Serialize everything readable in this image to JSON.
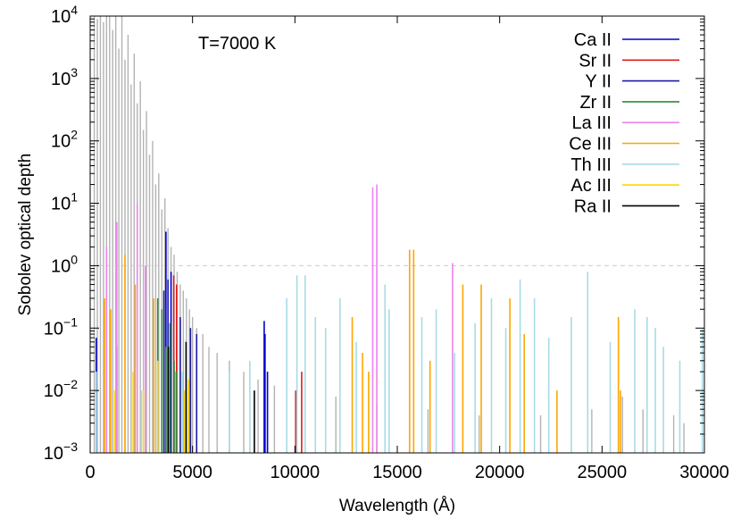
{
  "chart_data": {
    "type": "bar",
    "subtype": "vertical line spectrum (stick plot)",
    "xlabel": "Wavelength (Å)",
    "ylabel": "Sobolev optical depth",
    "annotation": "T=7000 K",
    "xlim": [
      0,
      30000
    ],
    "ylim": [
      0.001,
      10000
    ],
    "yscale": "log",
    "grid": false,
    "legend_position": "top-right",
    "x_ticks": [
      "0",
      "5000",
      "10000",
      "15000",
      "20000",
      "25000",
      "30000"
    ],
    "x_tick_values": [
      0,
      5000,
      10000,
      15000,
      20000,
      25000,
      30000
    ],
    "y_ticks": [
      {
        "value": 0.001,
        "base": "10",
        "exp": "−3"
      },
      {
        "value": 0.01,
        "base": "10",
        "exp": "−2"
      },
      {
        "value": 0.1,
        "base": "10",
        "exp": "−1"
      },
      {
        "value": 1,
        "base": "10",
        "exp": "0"
      },
      {
        "value": 10,
        "base": "10",
        "exp": "1"
      },
      {
        "value": 100,
        "base": "10",
        "exp": "2"
      },
      {
        "value": 1000,
        "base": "10",
        "exp": "3"
      },
      {
        "value": 10000,
        "base": "10",
        "exp": "4"
      }
    ],
    "reference_line": {
      "y": 1,
      "style": "dashed",
      "color": "#cccccc"
    },
    "background_lines": {
      "color": "#b3b3b3",
      "lines": [
        [
          200,
          10000
        ],
        [
          350,
          9000
        ],
        [
          500,
          10000
        ],
        [
          650,
          8000
        ],
        [
          800,
          10000
        ],
        [
          950,
          10000
        ],
        [
          1100,
          6000
        ],
        [
          1250,
          10000
        ],
        [
          1400,
          3000
        ],
        [
          1550,
          10000
        ],
        [
          1700,
          2000
        ],
        [
          1850,
          5000
        ],
        [
          2000,
          800
        ],
        [
          2150,
          2500
        ],
        [
          2300,
          400
        ],
        [
          2450,
          900
        ],
        [
          2600,
          150
        ],
        [
          2750,
          300
        ],
        [
          2900,
          60
        ],
        [
          3050,
          100
        ],
        [
          3200,
          20
        ],
        [
          3350,
          30
        ],
        [
          3500,
          8
        ],
        [
          3650,
          12
        ],
        [
          3800,
          4
        ],
        [
          3950,
          2
        ],
        [
          4100,
          1.5
        ],
        [
          4250,
          0.8
        ],
        [
          4400,
          0.5
        ],
        [
          4550,
          0.4
        ],
        [
          4700,
          0.3
        ],
        [
          4850,
          0.2
        ],
        [
          5000,
          0.15
        ],
        [
          5200,
          0.1
        ],
        [
          5500,
          0.08
        ],
        [
          5800,
          0.05
        ],
        [
          6200,
          0.04
        ],
        [
          6800,
          0.03
        ],
        [
          7500,
          0.02
        ],
        [
          8200,
          0.015
        ],
        [
          9000,
          0.012
        ],
        [
          10500,
          0.01
        ],
        [
          12000,
          0.008
        ],
        [
          14000,
          0.006
        ],
        [
          16500,
          0.005
        ],
        [
          19000,
          0.004
        ],
        [
          22000,
          0.004
        ],
        [
          24500,
          0.005
        ],
        [
          26000,
          0.008
        ],
        [
          27000,
          0.005
        ],
        [
          28500,
          0.004
        ],
        [
          29000,
          0.003
        ]
      ]
    },
    "series": [
      {
        "name": "Ca II",
        "color": "#0000cc",
        "lines": [
          [
            300,
            0.07
          ],
          [
            1300,
            0.05
          ],
          [
            3700,
            3.5
          ],
          [
            3950,
            0.8
          ],
          [
            8500,
            0.13
          ],
          [
            8660,
            0.02
          ],
          [
            8540,
            0.08
          ]
        ]
      },
      {
        "name": "Sr II",
        "color": "#e31a1c",
        "lines": [
          [
            4080,
            0.7
          ],
          [
            4220,
            0.5
          ],
          [
            10330,
            0.02
          ],
          [
            10040,
            0.01
          ]
        ]
      },
      {
        "name": "Y II",
        "color": "#1a1aa0",
        "lines": [
          [
            3600,
            0.4
          ],
          [
            3800,
            0.6
          ],
          [
            4400,
            0.15
          ],
          [
            4900,
            0.1
          ],
          [
            5200,
            0.08
          ]
        ]
      },
      {
        "name": "Zr II",
        "color": "#2e8b3a",
        "lines": [
          [
            3300,
            0.3
          ],
          [
            3500,
            0.2
          ],
          [
            3700,
            0.05
          ],
          [
            3900,
            0.12
          ],
          [
            4100,
            0.03
          ],
          [
            4200,
            0.02
          ]
        ]
      },
      {
        "name": "La III",
        "color": "#ee82ee",
        "lines": [
          [
            800,
            2
          ],
          [
            1300,
            5
          ],
          [
            2300,
            10
          ],
          [
            2700,
            1
          ],
          [
            13800,
            18
          ],
          [
            14000,
            20
          ],
          [
            17700,
            1.1
          ]
        ]
      },
      {
        "name": "Ce III",
        "color": "#ffa500",
        "lines": [
          [
            700,
            0.3
          ],
          [
            1000,
            0.2
          ],
          [
            1700,
            1.5
          ],
          [
            2200,
            0.5
          ],
          [
            3100,
            0.3
          ],
          [
            12800,
            0.15
          ],
          [
            13300,
            0.04
          ],
          [
            13600,
            0.02
          ],
          [
            15600,
            1.8
          ],
          [
            15800,
            1.8
          ],
          [
            16600,
            0.03
          ],
          [
            18200,
            0.5
          ],
          [
            19100,
            0.5
          ],
          [
            20500,
            0.3
          ],
          [
            21200,
            0.08
          ],
          [
            22800,
            0.01
          ],
          [
            25800,
            0.15
          ],
          [
            25900,
            0.01
          ]
        ]
      },
      {
        "name": "Th III",
        "color": "#a8dbe6",
        "lines": [
          [
            300,
            0.02
          ],
          [
            2500,
            0.01
          ],
          [
            4500,
            0.02
          ],
          [
            6800,
            0.02
          ],
          [
            7800,
            0.03
          ],
          [
            9600,
            0.3
          ],
          [
            10100,
            0.7
          ],
          [
            10500,
            0.7
          ],
          [
            11000,
            0.15
          ],
          [
            11500,
            0.1
          ],
          [
            12200,
            0.3
          ],
          [
            13000,
            0.06
          ],
          [
            14400,
            0.5
          ],
          [
            14600,
            0.2
          ],
          [
            16200,
            0.15
          ],
          [
            16900,
            0.2
          ],
          [
            17800,
            0.04
          ],
          [
            18800,
            0.12
          ],
          [
            19600,
            0.3
          ],
          [
            20300,
            0.1
          ],
          [
            21000,
            0.6
          ],
          [
            21700,
            0.3
          ],
          [
            22400,
            0.07
          ],
          [
            23500,
            0.15
          ],
          [
            24300,
            0.8
          ],
          [
            25400,
            0.06
          ],
          [
            26600,
            0.2
          ],
          [
            27200,
            0.15
          ],
          [
            27600,
            0.1
          ],
          [
            28000,
            0.05
          ],
          [
            28800,
            0.03
          ],
          [
            29900,
            0.1
          ]
        ]
      },
      {
        "name": "Ac III",
        "color": "#ffd700",
        "lines": [
          [
            1200,
            0.01
          ],
          [
            2100,
            0.02
          ],
          [
            2600,
            0.01
          ],
          [
            3300,
            0.03
          ],
          [
            4600,
            0.01
          ],
          [
            4800,
            0.015
          ]
        ]
      },
      {
        "name": "Ra II",
        "color": "#000000",
        "lines": [
          [
            3815,
            0.05
          ],
          [
            4683,
            0.06
          ],
          [
            8019,
            0.01
          ]
        ]
      }
    ]
  }
}
